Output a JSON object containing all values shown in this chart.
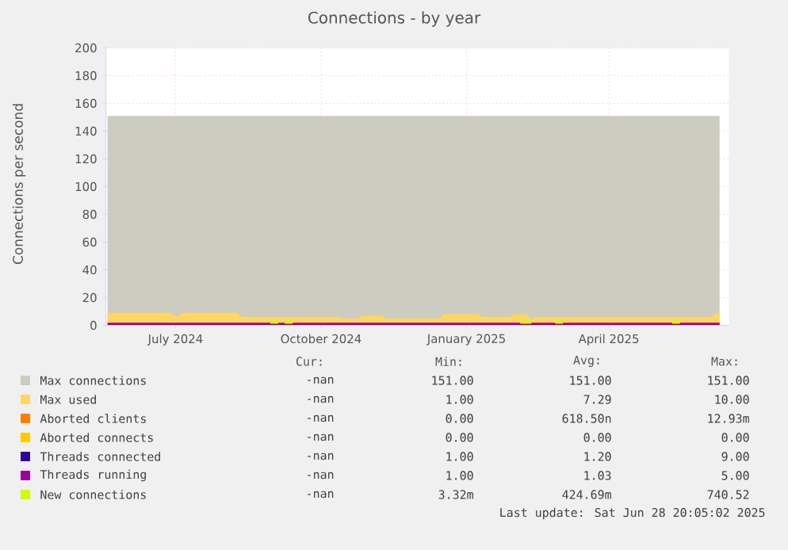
{
  "chart_data": {
    "type": "area",
    "title": "Connections - by year",
    "ylabel": "Connections per second",
    "xlim": [
      "2024-06-01",
      "2025-06-30"
    ],
    "ylim": [
      0,
      200
    ],
    "xticks": [
      {
        "value": "2024-07-15",
        "label": "July 2024"
      },
      {
        "value": "2024-10-15",
        "label": "October 2024"
      },
      {
        "value": "2025-01-15",
        "label": "January 2025"
      },
      {
        "value": "2025-04-15",
        "label": "April 2025"
      }
    ],
    "yticks": [
      0,
      20,
      40,
      60,
      80,
      100,
      120,
      140,
      160,
      180,
      200
    ],
    "grid": true,
    "legend": "bottom",
    "series": [
      {
        "name": "Max connections",
        "color": "#ccccc0",
        "x": [
          "2024-06-02",
          "2024-09-01",
          "2024-12-01",
          "2025-03-01",
          "2025-06-24"
        ],
        "values": [
          151,
          151,
          151,
          151,
          151
        ]
      },
      {
        "name": "Max used",
        "color": "#ffd660",
        "x": [
          "2024-06-02",
          "2024-07-12",
          "2024-07-16",
          "2024-07-19",
          "2024-08-23",
          "2024-08-26",
          "2024-10-25",
          "2024-10-28",
          "2024-11-08",
          "2024-11-10",
          "2024-11-23",
          "2024-11-25",
          "2024-12-29",
          "2024-12-31",
          "2025-01-23",
          "2025-01-25",
          "2025-02-12",
          "2025-02-14",
          "2025-02-22",
          "2025-02-25",
          "2025-02-27",
          "2025-06-19",
          "2025-06-22",
          "2025-06-24"
        ],
        "values": [
          9,
          9,
          6,
          9,
          9,
          6,
          6,
          5,
          5,
          7,
          7,
          5,
          5,
          8,
          8,
          6,
          6,
          8,
          8,
          4,
          6,
          6,
          9,
          9
        ]
      },
      {
        "name": "Aborted clients",
        "color": "#ff7d00",
        "type": "line"
      },
      {
        "name": "Aborted connects",
        "color": "#ffcc00",
        "type": "line"
      },
      {
        "name": "Threads connected",
        "color": "#330099",
        "type": "line"
      },
      {
        "name": "Threads running",
        "color": "#990099",
        "type": "line",
        "x": [
          "2024-06-02",
          "2025-06-24"
        ],
        "values": [
          1,
          1
        ]
      },
      {
        "name": "New connections",
        "color": "#ccff00",
        "type": "line",
        "x": [
          "2024-09-13",
          "2024-09-18",
          "2024-09-19",
          "2024-09-22",
          "2024-09-27",
          "2024-09-28",
          "2025-02-18",
          "2025-02-25",
          "2025-02-26",
          "2025-03-12",
          "2025-03-17",
          "2025-03-18",
          "2025-05-25",
          "2025-05-30"
        ],
        "values": [
          2,
          2,
          null,
          2,
          2,
          null,
          2,
          2,
          null,
          2,
          2,
          null,
          2,
          2
        ]
      }
    ],
    "annotations": [
      "Cur:",
      "Min:",
      "Avg:",
      "Max:",
      "-nan",
      "151.00",
      "151.00",
      "151.00",
      "-nan",
      "1.00",
      "7.29",
      "10.00",
      "-nan",
      "0.00",
      "618.50n",
      "12.93m",
      "-nan",
      "0.00",
      "0.00",
      "0.00",
      "-nan",
      "1.00",
      "1.20",
      "9.00",
      "-nan",
      "1.00",
      "1.03",
      "5.00",
      "-nan",
      "3.32m",
      "424.69m",
      "740.52",
      "Last update: Sat Jun 28 20:05:02 2025"
    ]
  }
}
